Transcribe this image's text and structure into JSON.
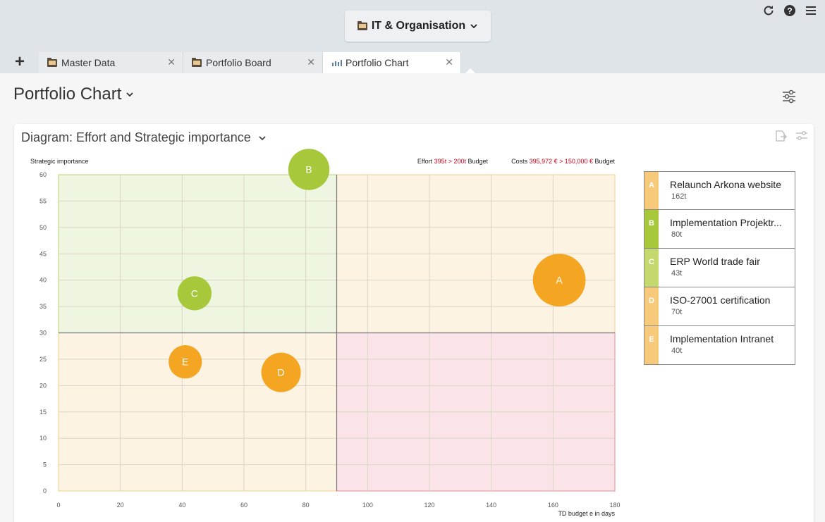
{
  "header": {
    "workspace_label": "IT & Organisation",
    "icons": [
      "refresh-icon",
      "help-icon",
      "menu-icon"
    ]
  },
  "tabs": [
    {
      "label": "Master Data",
      "icon": "folder-icon",
      "active": false
    },
    {
      "label": "Portfolio Board",
      "icon": "folder-icon",
      "active": false
    },
    {
      "label": "Portfolio Chart",
      "icon": "chart-icon",
      "active": true
    }
  ],
  "page": {
    "title": "Portfolio Chart"
  },
  "card": {
    "title": "Diagram: Effort and Strategic importance"
  },
  "colors": {
    "green": "#a6c83a",
    "orange": "#f4a522",
    "green_bg": "#eef5e0",
    "orange_bg": "#fdf3e3",
    "red_bg": "#fbe4e8",
    "red_accent": "#d0021b"
  },
  "chart_data": {
    "type": "scatter",
    "ylabel": "Strategic importance",
    "xlabel": "TD budget e in days",
    "xlim": [
      0,
      180
    ],
    "ylim": [
      0,
      60
    ],
    "xticks": [
      0,
      20,
      40,
      60,
      80,
      100,
      120,
      140,
      160,
      180
    ],
    "yticks": [
      0,
      5,
      10,
      15,
      20,
      25,
      30,
      35,
      40,
      45,
      50,
      55,
      60
    ],
    "quadrant_split": {
      "x": 90,
      "y": 30
    },
    "effort_summary": {
      "prefix": "Effort",
      "value": "395t > 200t",
      "suffix": "Budget"
    },
    "costs_summary": {
      "prefix": "Costs",
      "value": "395,972 € > 150,000 €",
      "suffix": "Budget"
    },
    "points": [
      {
        "label": "A",
        "x": 162,
        "y": 40,
        "size": 162,
        "color": "#f4a522"
      },
      {
        "label": "B",
        "x": 81,
        "y": 61,
        "size": 80,
        "color": "#a6c83a"
      },
      {
        "label": "C",
        "x": 44,
        "y": 37.5,
        "size": 43,
        "color": "#a6c83a"
      },
      {
        "label": "D",
        "x": 72,
        "y": 22.5,
        "size": 70,
        "color": "#f4a522"
      },
      {
        "label": "E",
        "x": 41,
        "y": 24.5,
        "size": 40,
        "color": "#f4a522"
      }
    ]
  },
  "legend": [
    {
      "letter": "A",
      "name": "Relaunch Arkona website",
      "effort": "162t",
      "color": "#f7c97a"
    },
    {
      "letter": "B",
      "name": "Implementation Projektr...",
      "effort": "80t",
      "color": "#a6c83a"
    },
    {
      "letter": "C",
      "name": "ERP World trade fair",
      "effort": "43t",
      "color": "#c3d96e"
    },
    {
      "letter": "D",
      "name": "ISO-27001 certification",
      "effort": "70t",
      "color": "#f7c97a"
    },
    {
      "letter": "E",
      "name": "Implementation Intranet",
      "effort": "40t",
      "color": "#f7c97a"
    }
  ]
}
